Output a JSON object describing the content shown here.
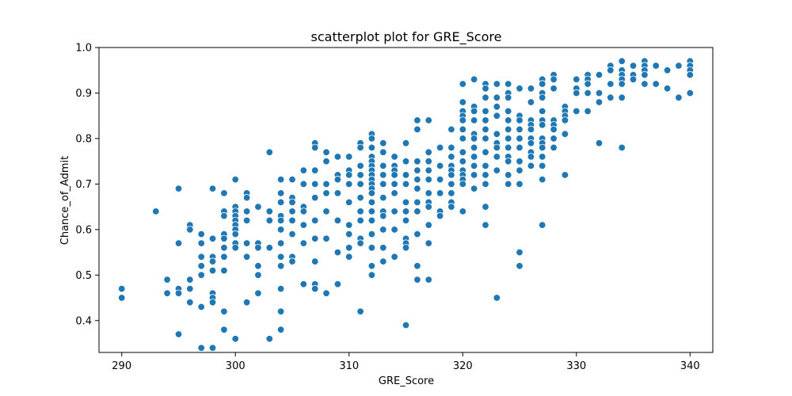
{
  "chart_data": {
    "type": "scatter",
    "title": "scatterplot plot for GRE_Score",
    "xlabel": "GRE_Score",
    "ylabel": "Chance_of_Admit",
    "xlim": [
      288,
      342
    ],
    "ylim": [
      0.33,
      1.0
    ],
    "xticks": [
      290,
      300,
      310,
      320,
      330,
      340
    ],
    "yticks": [
      0.4,
      0.5,
      0.6,
      0.7,
      0.8,
      0.9,
      1.0
    ],
    "ytick_labels": [
      "0.4",
      "0.5",
      "0.6",
      "0.7",
      "0.8",
      "0.9",
      "1.0"
    ],
    "grid": false,
    "color": "#1f77b4",
    "points": [
      [
        290,
        0.47
      ],
      [
        290,
        0.45
      ],
      [
        293,
        0.64
      ],
      [
        294,
        0.49
      ],
      [
        294,
        0.46
      ],
      [
        295,
        0.69
      ],
      [
        295,
        0.57
      ],
      [
        295,
        0.47
      ],
      [
        295,
        0.46
      ],
      [
        295,
        0.37
      ],
      [
        296,
        0.61
      ],
      [
        296,
        0.6
      ],
      [
        296,
        0.49
      ],
      [
        296,
        0.47
      ],
      [
        296,
        0.44
      ],
      [
        297,
        0.59
      ],
      [
        297,
        0.57
      ],
      [
        297,
        0.54
      ],
      [
        297,
        0.52
      ],
      [
        297,
        0.5
      ],
      [
        297,
        0.43
      ],
      [
        297,
        0.34
      ],
      [
        298,
        0.69
      ],
      [
        298,
        0.58
      ],
      [
        298,
        0.54
      ],
      [
        298,
        0.53
      ],
      [
        298,
        0.51
      ],
      [
        298,
        0.46
      ],
      [
        298,
        0.45
      ],
      [
        298,
        0.44
      ],
      [
        298,
        0.34
      ],
      [
        299,
        0.68
      ],
      [
        299,
        0.64
      ],
      [
        299,
        0.63
      ],
      [
        299,
        0.59
      ],
      [
        299,
        0.58
      ],
      [
        299,
        0.56
      ],
      [
        299,
        0.54
      ],
      [
        299,
        0.51
      ],
      [
        299,
        0.42
      ],
      [
        299,
        0.38
      ],
      [
        300,
        0.71
      ],
      [
        300,
        0.65
      ],
      [
        300,
        0.64
      ],
      [
        300,
        0.63
      ],
      [
        300,
        0.62
      ],
      [
        300,
        0.61
      ],
      [
        300,
        0.6
      ],
      [
        300,
        0.59
      ],
      [
        300,
        0.57
      ],
      [
        300,
        0.56
      ],
      [
        300,
        0.36
      ],
      [
        301,
        0.68
      ],
      [
        301,
        0.67
      ],
      [
        301,
        0.64
      ],
      [
        301,
        0.62
      ],
      [
        301,
        0.57
      ],
      [
        301,
        0.54
      ],
      [
        301,
        0.44
      ],
      [
        302,
        0.65
      ],
      [
        302,
        0.57
      ],
      [
        302,
        0.56
      ],
      [
        302,
        0.52
      ],
      [
        302,
        0.5
      ],
      [
        302,
        0.46
      ],
      [
        303,
        0.77
      ],
      [
        303,
        0.64
      ],
      [
        303,
        0.62
      ],
      [
        303,
        0.56
      ],
      [
        303,
        0.36
      ],
      [
        304,
        0.71
      ],
      [
        304,
        0.68
      ],
      [
        304,
        0.66
      ],
      [
        304,
        0.63
      ],
      [
        304,
        0.62
      ],
      [
        304,
        0.6
      ],
      [
        304,
        0.57
      ],
      [
        304,
        0.54
      ],
      [
        304,
        0.52
      ],
      [
        304,
        0.47
      ],
      [
        304,
        0.42
      ],
      [
        304,
        0.38
      ],
      [
        305,
        0.71
      ],
      [
        305,
        0.67
      ],
      [
        305,
        0.66
      ],
      [
        305,
        0.64
      ],
      [
        305,
        0.62
      ],
      [
        305,
        0.59
      ],
      [
        305,
        0.54
      ],
      [
        305,
        0.53
      ],
      [
        306,
        0.73
      ],
      [
        306,
        0.7
      ],
      [
        306,
        0.65
      ],
      [
        306,
        0.64
      ],
      [
        306,
        0.61
      ],
      [
        306,
        0.57
      ],
      [
        306,
        0.48
      ],
      [
        307,
        0.79
      ],
      [
        307,
        0.78
      ],
      [
        307,
        0.73
      ],
      [
        307,
        0.7
      ],
      [
        307,
        0.67
      ],
      [
        307,
        0.62
      ],
      [
        307,
        0.58
      ],
      [
        307,
        0.53
      ],
      [
        307,
        0.48
      ],
      [
        307,
        0.47
      ],
      [
        308,
        0.77
      ],
      [
        308,
        0.75
      ],
      [
        308,
        0.7
      ],
      [
        308,
        0.68
      ],
      [
        308,
        0.64
      ],
      [
        308,
        0.58
      ],
      [
        308,
        0.46
      ],
      [
        309,
        0.76
      ],
      [
        309,
        0.72
      ],
      [
        309,
        0.71
      ],
      [
        309,
        0.68
      ],
      [
        309,
        0.62
      ],
      [
        309,
        0.55
      ],
      [
        309,
        0.48
      ],
      [
        310,
        0.76
      ],
      [
        310,
        0.73
      ],
      [
        310,
        0.72
      ],
      [
        310,
        0.7
      ],
      [
        310,
        0.66
      ],
      [
        310,
        0.61
      ],
      [
        310,
        0.59
      ],
      [
        310,
        0.56
      ],
      [
        310,
        0.54
      ],
      [
        311,
        0.79
      ],
      [
        311,
        0.78
      ],
      [
        311,
        0.74
      ],
      [
        311,
        0.72
      ],
      [
        311,
        0.7
      ],
      [
        311,
        0.67
      ],
      [
        311,
        0.64
      ],
      [
        311,
        0.62
      ],
      [
        311,
        0.58
      ],
      [
        311,
        0.57
      ],
      [
        311,
        0.42
      ],
      [
        312,
        0.81
      ],
      [
        312,
        0.8
      ],
      [
        312,
        0.78
      ],
      [
        312,
        0.76
      ],
      [
        312,
        0.75
      ],
      [
        312,
        0.74
      ],
      [
        312,
        0.73
      ],
      [
        312,
        0.72
      ],
      [
        312,
        0.71
      ],
      [
        312,
        0.7
      ],
      [
        312,
        0.69
      ],
      [
        312,
        0.68
      ],
      [
        312,
        0.66
      ],
      [
        312,
        0.64
      ],
      [
        312,
        0.62
      ],
      [
        312,
        0.59
      ],
      [
        312,
        0.56
      ],
      [
        312,
        0.52
      ],
      [
        312,
        0.5
      ],
      [
        313,
        0.79
      ],
      [
        313,
        0.77
      ],
      [
        313,
        0.74
      ],
      [
        313,
        0.72
      ],
      [
        313,
        0.7
      ],
      [
        313,
        0.67
      ],
      [
        313,
        0.64
      ],
      [
        313,
        0.63
      ],
      [
        313,
        0.6
      ],
      [
        313,
        0.56
      ],
      [
        313,
        0.53
      ],
      [
        314,
        0.76
      ],
      [
        314,
        0.74
      ],
      [
        314,
        0.73
      ],
      [
        314,
        0.72
      ],
      [
        314,
        0.7
      ],
      [
        314,
        0.68
      ],
      [
        314,
        0.64
      ],
      [
        314,
        0.6
      ],
      [
        314,
        0.54
      ],
      [
        315,
        0.79
      ],
      [
        315,
        0.75
      ],
      [
        315,
        0.72
      ],
      [
        315,
        0.7
      ],
      [
        315,
        0.66
      ],
      [
        315,
        0.64
      ],
      [
        315,
        0.62
      ],
      [
        315,
        0.58
      ],
      [
        315,
        0.57
      ],
      [
        315,
        0.56
      ],
      [
        315,
        0.39
      ],
      [
        316,
        0.84
      ],
      [
        316,
        0.82
      ],
      [
        316,
        0.75
      ],
      [
        316,
        0.73
      ],
      [
        316,
        0.71
      ],
      [
        316,
        0.69
      ],
      [
        316,
        0.66
      ],
      [
        316,
        0.64
      ],
      [
        316,
        0.59
      ],
      [
        316,
        0.52
      ],
      [
        316,
        0.49
      ],
      [
        317,
        0.84
      ],
      [
        317,
        0.77
      ],
      [
        317,
        0.75
      ],
      [
        317,
        0.73
      ],
      [
        317,
        0.71
      ],
      [
        317,
        0.68
      ],
      [
        317,
        0.66
      ],
      [
        317,
        0.65
      ],
      [
        317,
        0.61
      ],
      [
        317,
        0.57
      ],
      [
        317,
        0.49
      ],
      [
        318,
        0.78
      ],
      [
        318,
        0.74
      ],
      [
        318,
        0.71
      ],
      [
        318,
        0.68
      ],
      [
        318,
        0.64
      ],
      [
        318,
        0.63
      ],
      [
        319,
        0.82
      ],
      [
        319,
        0.78
      ],
      [
        319,
        0.76
      ],
      [
        319,
        0.74
      ],
      [
        319,
        0.73
      ],
      [
        319,
        0.72
      ],
      [
        319,
        0.7
      ],
      [
        319,
        0.68
      ],
      [
        319,
        0.66
      ],
      [
        319,
        0.65
      ],
      [
        320,
        0.92
      ],
      [
        320,
        0.88
      ],
      [
        320,
        0.86
      ],
      [
        320,
        0.85
      ],
      [
        320,
        0.84
      ],
      [
        320,
        0.82
      ],
      [
        320,
        0.8
      ],
      [
        320,
        0.77
      ],
      [
        320,
        0.75
      ],
      [
        320,
        0.73
      ],
      [
        320,
        0.72
      ],
      [
        320,
        0.71
      ],
      [
        320,
        0.7
      ],
      [
        320,
        0.64
      ],
      [
        321,
        0.93
      ],
      [
        321,
        0.87
      ],
      [
        321,
        0.86
      ],
      [
        321,
        0.84
      ],
      [
        321,
        0.81
      ],
      [
        321,
        0.8
      ],
      [
        321,
        0.78
      ],
      [
        321,
        0.76
      ],
      [
        321,
        0.74
      ],
      [
        321,
        0.72
      ],
      [
        321,
        0.69
      ],
      [
        322,
        0.92
      ],
      [
        322,
        0.91
      ],
      [
        322,
        0.89
      ],
      [
        322,
        0.86
      ],
      [
        322,
        0.84
      ],
      [
        322,
        0.82
      ],
      [
        322,
        0.8
      ],
      [
        322,
        0.77
      ],
      [
        322,
        0.74
      ],
      [
        322,
        0.72
      ],
      [
        322,
        0.7
      ],
      [
        322,
        0.65
      ],
      [
        322,
        0.61
      ],
      [
        323,
        0.92
      ],
      [
        323,
        0.89
      ],
      [
        323,
        0.87
      ],
      [
        323,
        0.85
      ],
      [
        323,
        0.81
      ],
      [
        323,
        0.79
      ],
      [
        323,
        0.78
      ],
      [
        323,
        0.76
      ],
      [
        323,
        0.73
      ],
      [
        323,
        0.45
      ],
      [
        324,
        0.92
      ],
      [
        324,
        0.9
      ],
      [
        324,
        0.89
      ],
      [
        324,
        0.86
      ],
      [
        324,
        0.84
      ],
      [
        324,
        0.82
      ],
      [
        324,
        0.8
      ],
      [
        324,
        0.78
      ],
      [
        324,
        0.76
      ],
      [
        324,
        0.75
      ],
      [
        324,
        0.72
      ],
      [
        324,
        0.7
      ],
      [
        325,
        0.91
      ],
      [
        325,
        0.85
      ],
      [
        325,
        0.84
      ],
      [
        325,
        0.82
      ],
      [
        325,
        0.8
      ],
      [
        325,
        0.78
      ],
      [
        325,
        0.75
      ],
      [
        325,
        0.73
      ],
      [
        325,
        0.7
      ],
      [
        325,
        0.55
      ],
      [
        325,
        0.52
      ],
      [
        326,
        0.91
      ],
      [
        326,
        0.88
      ],
      [
        326,
        0.84
      ],
      [
        326,
        0.83
      ],
      [
        326,
        0.82
      ],
      [
        326,
        0.8
      ],
      [
        326,
        0.79
      ],
      [
        326,
        0.77
      ],
      [
        326,
        0.76
      ],
      [
        326,
        0.74
      ],
      [
        327,
        0.93
      ],
      [
        327,
        0.92
      ],
      [
        327,
        0.9
      ],
      [
        327,
        0.89
      ],
      [
        327,
        0.86
      ],
      [
        327,
        0.84
      ],
      [
        327,
        0.83
      ],
      [
        327,
        0.8
      ],
      [
        327,
        0.79
      ],
      [
        327,
        0.78
      ],
      [
        327,
        0.76
      ],
      [
        327,
        0.74
      ],
      [
        327,
        0.71
      ],
      [
        327,
        0.61
      ],
      [
        328,
        0.94
      ],
      [
        328,
        0.93
      ],
      [
        328,
        0.91
      ],
      [
        328,
        0.84
      ],
      [
        328,
        0.83
      ],
      [
        328,
        0.82
      ],
      [
        328,
        0.8
      ],
      [
        328,
        0.78
      ],
      [
        329,
        0.87
      ],
      [
        329,
        0.86
      ],
      [
        329,
        0.85
      ],
      [
        329,
        0.84
      ],
      [
        329,
        0.81
      ],
      [
        329,
        0.72
      ],
      [
        330,
        0.93
      ],
      [
        330,
        0.91
      ],
      [
        330,
        0.9
      ],
      [
        330,
        0.86
      ],
      [
        331,
        0.94
      ],
      [
        331,
        0.93
      ],
      [
        331,
        0.92
      ],
      [
        331,
        0.9
      ],
      [
        331,
        0.86
      ],
      [
        332,
        0.94
      ],
      [
        332,
        0.9
      ],
      [
        332,
        0.88
      ],
      [
        332,
        0.79
      ],
      [
        333,
        0.96
      ],
      [
        333,
        0.95
      ],
      [
        333,
        0.92
      ],
      [
        333,
        0.89
      ],
      [
        334,
        0.97
      ],
      [
        334,
        0.95
      ],
      [
        334,
        0.94
      ],
      [
        334,
        0.93
      ],
      [
        334,
        0.92
      ],
      [
        334,
        0.89
      ],
      [
        334,
        0.78
      ],
      [
        335,
        0.96
      ],
      [
        335,
        0.94
      ],
      [
        335,
        0.93
      ],
      [
        336,
        0.97
      ],
      [
        336,
        0.96
      ],
      [
        336,
        0.95
      ],
      [
        336,
        0.94
      ],
      [
        336,
        0.92
      ],
      [
        337,
        0.96
      ],
      [
        337,
        0.92
      ],
      [
        338,
        0.95
      ],
      [
        338,
        0.91
      ],
      [
        339,
        0.96
      ],
      [
        339,
        0.89
      ],
      [
        340,
        0.97
      ],
      [
        340,
        0.96
      ],
      [
        340,
        0.95
      ],
      [
        340,
        0.94
      ],
      [
        340,
        0.9
      ]
    ]
  }
}
